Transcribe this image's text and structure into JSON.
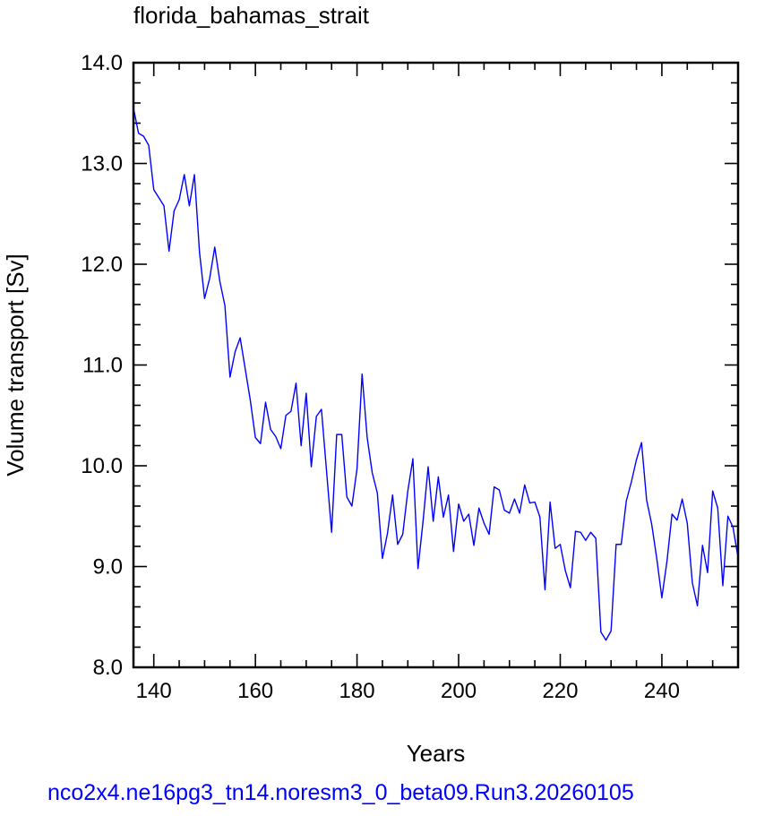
{
  "chart_data": {
    "type": "line",
    "title": "florida_bahamas_strait",
    "xlabel": "Years",
    "ylabel": "Volume transport [Sv]",
    "xlim": [
      136,
      255
    ],
    "ylim": [
      8.0,
      14.0
    ],
    "x_ticks": [
      140,
      160,
      180,
      200,
      220,
      240
    ],
    "x_tick_labels": [
      "140",
      "160",
      "180",
      "200",
      "220",
      "240"
    ],
    "y_ticks": [
      8.0,
      9.0,
      10.0,
      11.0,
      12.0,
      13.0,
      14.0
    ],
    "y_tick_labels": [
      "8.0",
      "9.0",
      "10.0",
      "11.0",
      "12.0",
      "13.0",
      "14.0"
    ],
    "grid": false,
    "series_color": "#0000ff",
    "x": [
      136,
      137,
      138,
      139,
      140,
      141,
      142,
      143,
      144,
      145,
      146,
      147,
      148,
      149,
      150,
      151,
      152,
      153,
      154,
      155,
      156,
      157,
      158,
      159,
      160,
      161,
      162,
      163,
      164,
      165,
      166,
      167,
      168,
      169,
      170,
      171,
      172,
      173,
      174,
      175,
      176,
      177,
      178,
      179,
      180,
      181,
      182,
      183,
      184,
      185,
      186,
      187,
      188,
      189,
      190,
      191,
      192,
      193,
      194,
      195,
      196,
      197,
      198,
      199,
      200,
      201,
      202,
      203,
      204,
      205,
      206,
      207,
      208,
      209,
      210,
      211,
      212,
      213,
      214,
      215,
      216,
      217,
      218,
      219,
      220,
      221,
      222,
      223,
      224,
      225,
      226,
      227,
      228,
      229,
      230,
      231,
      232,
      233,
      234,
      235,
      236,
      237,
      238,
      239,
      240,
      241,
      242,
      243,
      244,
      245,
      246,
      247,
      248,
      249,
      250,
      251,
      252,
      253,
      254,
      255
    ],
    "values": [
      13.55,
      13.3,
      13.27,
      13.18,
      12.74,
      12.66,
      12.58,
      12.13,
      12.53,
      12.64,
      12.89,
      12.58,
      12.89,
      12.12,
      11.66,
      11.86,
      12.17,
      11.83,
      11.59,
      10.88,
      11.13,
      11.27,
      10.96,
      10.65,
      10.28,
      10.22,
      10.63,
      10.36,
      10.29,
      10.17,
      10.5,
      10.54,
      10.82,
      10.2,
      10.72,
      9.99,
      10.49,
      10.56,
      9.95,
      9.34,
      10.31,
      10.31,
      9.69,
      9.6,
      9.97,
      10.91,
      10.28,
      9.93,
      9.73,
      9.08,
      9.33,
      9.71,
      9.22,
      9.32,
      9.75,
      10.07,
      8.98,
      9.45,
      9.99,
      9.45,
      9.89,
      9.49,
      9.71,
      9.15,
      9.62,
      9.45,
      9.52,
      9.21,
      9.58,
      9.43,
      9.32,
      9.79,
      9.76,
      9.56,
      9.53,
      9.67,
      9.53,
      9.81,
      9.63,
      9.64,
      9.49,
      8.77,
      9.64,
      9.18,
      9.22,
      8.96,
      8.79,
      9.35,
      9.34,
      9.26,
      9.34,
      9.28,
      8.35,
      8.27,
      8.36,
      9.22,
      9.22,
      9.65,
      9.84,
      10.06,
      10.23,
      9.66,
      9.42,
      9.08,
      8.69,
      9.05,
      9.52,
      9.46,
      9.67,
      9.43,
      8.84,
      8.61,
      9.21,
      8.94,
      9.75,
      9.58,
      8.81,
      9.5,
      9.39,
      9.09
    ]
  },
  "footer": "nco2x4.ne16pg3_tn14.noresm3_0_beta09.Run3.20260105"
}
